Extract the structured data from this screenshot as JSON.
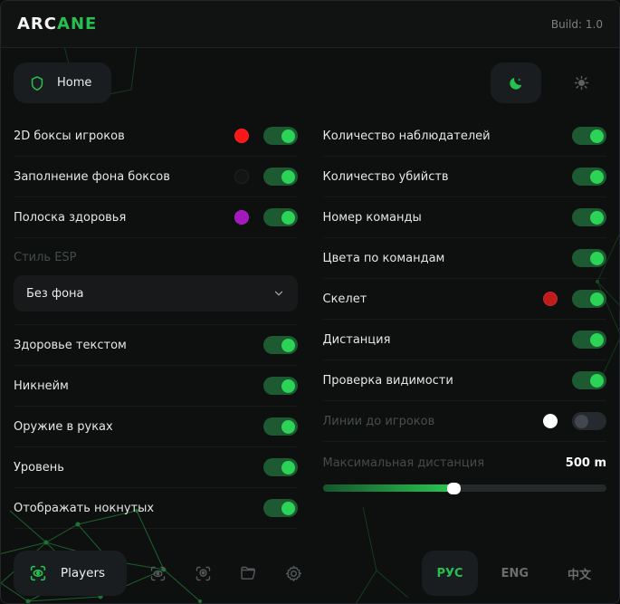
{
  "accent_color": "#25c04e",
  "header": {
    "logo_white": "ARC",
    "logo_green": "ANE",
    "build": "Build: 1.0"
  },
  "nav": {
    "home_label": "Home",
    "theme": {
      "active": "dark",
      "icons": [
        "moon-icon",
        "sun-icon"
      ]
    }
  },
  "left": {
    "rows": [
      {
        "label": "2D боксы игроков",
        "swatch": "#fb1717",
        "toggle": "on"
      },
      {
        "label": "Заполнение фона боксов",
        "swatch": "#141414",
        "toggle": "on"
      },
      {
        "label": "Полоска здоровья",
        "swatch": "#a517c0",
        "toggle": "on"
      }
    ],
    "select": {
      "label": "Стиль ESP",
      "value": "Без фона"
    },
    "rows2": [
      {
        "label": "Здоровье текстом",
        "toggle": "on"
      },
      {
        "label": "Никнейм",
        "toggle": "on"
      },
      {
        "label": "Оружие в руках",
        "toggle": "on"
      },
      {
        "label": "Уровень",
        "toggle": "on"
      },
      {
        "label": "Отображать нокнутых",
        "toggle": "on"
      }
    ]
  },
  "right": {
    "rows": [
      {
        "label": "Количество наблюдателей",
        "toggle": "on"
      },
      {
        "label": "Количество убийств",
        "toggle": "on"
      },
      {
        "label": "Номер команды",
        "toggle": "on"
      },
      {
        "label": "Цвета по командам",
        "toggle": "on"
      },
      {
        "label": "Скелет",
        "swatch": "#c01c1c",
        "toggle": "on"
      },
      {
        "label": "Дистанция",
        "toggle": "on"
      },
      {
        "label": "Проверка видимости",
        "toggle": "on"
      },
      {
        "label": "Линии до игроков",
        "swatch": "#ffffff",
        "toggle": "off",
        "disabled": true
      }
    ],
    "slider": {
      "label": "Максимальная дистанция",
      "value": "500 m",
      "percent": 46
    }
  },
  "footer": {
    "players_label": "Players",
    "icons": [
      "esp-eye-scan-icon",
      "aim-eye-scan-icon",
      "folder-icon",
      "gear-icon"
    ],
    "languages": [
      {
        "label": "РУС",
        "active": true
      },
      {
        "label": "ENG",
        "active": false
      },
      {
        "label": "中文",
        "active": false
      }
    ]
  }
}
